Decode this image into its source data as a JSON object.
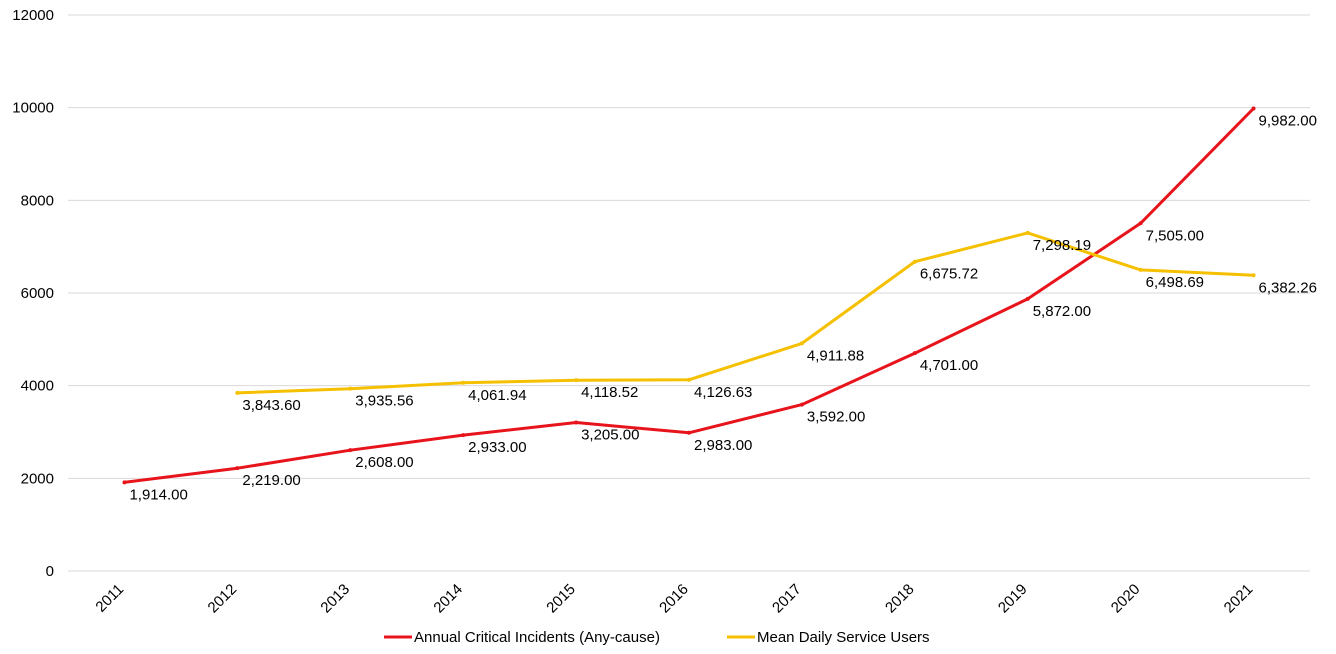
{
  "chart_data": {
    "type": "line",
    "categories": [
      "2011",
      "2012",
      "2013",
      "2014",
      "2015",
      "2016",
      "2017",
      "2018",
      "2019",
      "2020",
      "2021"
    ],
    "ylim": [
      0,
      12000
    ],
    "yticks": [
      0,
      2000,
      4000,
      6000,
      8000,
      10000,
      12000
    ],
    "grid": true,
    "legend_position": "bottom",
    "series": [
      {
        "name": "Annual Critical Incidents (Any-cause)",
        "color": "#e8141b",
        "values": [
          1914,
          2219,
          2608,
          2933,
          3205,
          2983,
          3592,
          4701,
          5872,
          7505,
          9982
        ],
        "labels": [
          "1,914.00",
          "2,219.00",
          "2,608.00",
          "2,933.00",
          "3,205.00",
          "2,983.00",
          "3,592.00",
          "4,701.00",
          "5,872.00",
          "7,505.00",
          "9,982.00"
        ]
      },
      {
        "name": "Mean Daily Service Users",
        "color": "#f5c000",
        "values": [
          null,
          3843.6,
          3935.56,
          4061.94,
          4118.52,
          4126.63,
          4911.88,
          6675.72,
          7298.19,
          6498.69,
          6382.26
        ],
        "labels": [
          null,
          "3,843.60",
          "3,935.56",
          "4,061.94",
          "4,118.52",
          "4,126.63",
          "4,911.88",
          "6,675.72",
          "7,298.19",
          "6,498.69",
          "6,382.26"
        ]
      }
    ]
  }
}
